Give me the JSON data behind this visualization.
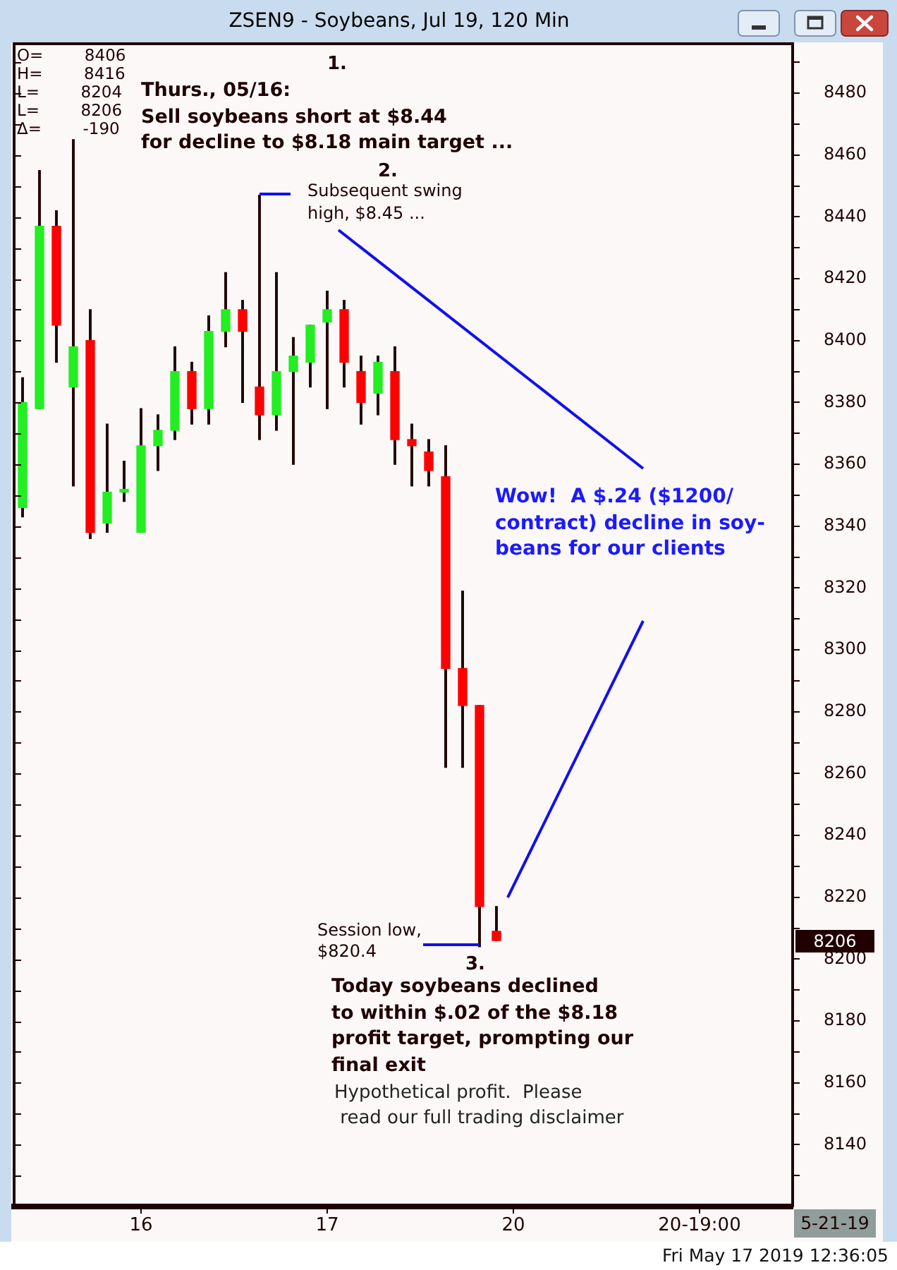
{
  "chart_data": {
    "type": "candlestick",
    "title": "ZSEN9 - Soybeans, Jul 19, 120 Min",
    "categories": [
      null,
      null,
      null,
      null,
      null,
      null,
      null,
      "16",
      null,
      null,
      null,
      null,
      null,
      null,
      null,
      null,
      null,
      null,
      "17",
      null,
      null,
      null,
      null,
      null,
      null,
      null,
      null,
      null,
      null,
      "20",
      null,
      null,
      null,
      null,
      null,
      null,
      null,
      null,
      null,
      null,
      "20-19:00",
      null,
      null,
      null,
      null,
      null
    ],
    "ohlc": [
      [
        8346,
        8388,
        8343,
        8380
      ],
      [
        8378,
        8455,
        8378,
        8437
      ],
      [
        8437,
        8442,
        8393,
        8405
      ],
      [
        8385,
        8465,
        8353,
        8398
      ],
      [
        8400,
        8410,
        8336,
        8338
      ],
      [
        8341,
        8373,
        8338,
        8351
      ],
      [
        8351,
        8361,
        8348,
        8351
      ],
      [
        8338,
        8378,
        8338,
        8366
      ],
      [
        8366,
        8376,
        8358,
        8371
      ],
      [
        8371,
        8398,
        8368,
        8390
      ],
      [
        8390,
        8393,
        8373,
        8378
      ],
      [
        8378,
        8408,
        8373,
        8403
      ],
      [
        8403,
        8422,
        8398,
        8410
      ],
      [
        8410,
        8413,
        8380,
        8403
      ],
      [
        8385,
        8447,
        8368,
        8376
      ],
      [
        8376,
        8422,
        8371,
        8390
      ],
      [
        8390,
        8401,
        8360,
        8395
      ],
      [
        8393,
        8405,
        8385,
        8405
      ],
      [
        8406,
        8416,
        8378,
        8410
      ],
      [
        8410,
        8413,
        8385,
        8393
      ],
      [
        8390,
        8395,
        8373,
        8380
      ],
      [
        8383,
        8395,
        8376,
        8393
      ],
      [
        8390,
        8398,
        8360,
        8368
      ],
      [
        8368,
        8373,
        8353,
        8366
      ],
      [
        8364,
        8368,
        8353,
        8358
      ],
      [
        8356,
        8366,
        8262,
        8294
      ],
      [
        8294,
        8319,
        8262,
        8282
      ],
      [
        8282,
        8282,
        8204,
        8217
      ],
      [
        8209,
        8217,
        8206,
        8206
      ],
      null,
      null,
      null,
      null,
      null,
      null,
      null,
      null,
      null,
      null,
      null,
      null,
      null,
      null,
      null,
      null,
      null
    ],
    "colors": [
      "#22ee22",
      "#22ee22",
      "#ff0000",
      "#22ee22",
      "#ff0000",
      "#22ee22",
      "#22ee22",
      "#22ee22",
      "#22ee22",
      "#22ee22",
      "#ff0000",
      "#22ee22",
      "#22ee22",
      "#ff0000",
      "#ff0000",
      "#22ee22",
      "#22ee22",
      "#22ee22",
      "#22ee22",
      "#ff0000",
      "#ff0000",
      "#22ee22",
      "#ff0000",
      "#ff0000",
      "#ff0000",
      "#ff0000",
      "#ff0000",
      "#ff0000",
      "#ff0000",
      null,
      null,
      null,
      null,
      null,
      null,
      null,
      null,
      null,
      null,
      null,
      null,
      null,
      null,
      null,
      null,
      null
    ],
    "ylim": [
      8120,
      8496
    ],
    "yticks": [
      {
        "value": 8130,
        "label": null
      },
      8140,
      {
        "value": 8150,
        "label": null
      },
      8160,
      {
        "value": 8170,
        "label": null
      },
      8180,
      {
        "value": 8190,
        "label": null
      },
      8200,
      {
        "value": 8210,
        "label": null
      },
      8220,
      {
        "value": 8230,
        "label": null
      },
      8240,
      {
        "value": 8250,
        "label": null
      },
      8260,
      {
        "value": 8270,
        "label": null
      },
      8280,
      {
        "value": 8290,
        "label": null
      },
      8300,
      {
        "value": 8310,
        "label": null
      },
      8320,
      {
        "value": 8330,
        "label": null
      },
      8340,
      {
        "value": 8350,
        "label": null
      },
      8360,
      {
        "value": 8370,
        "label": null
      },
      8380,
      {
        "value": 8390,
        "label": null
      },
      8400,
      {
        "value": 8410,
        "label": null
      },
      8420,
      {
        "value": 8430,
        "label": null
      },
      8440,
      {
        "value": 8450,
        "label": null
      },
      8460,
      {
        "value": 8470,
        "label": null
      },
      8480,
      {
        "value": 8490,
        "label": null
      }
    ],
    "legend": false,
    "annotations": [
      "O=        8406\nH=        8416\nL=        8204\nL=        8206\nΔ=        -190",
      "1.",
      "Thurs., 05/16:\nSell soybeans short at $8.44\nfor decline to $8.18 main target ...",
      "2.",
      "Subsequent swing\nhigh, $8.45 ...",
      "Wow!  A $.24 ($1200/\ncontract) decline in soy-\nbeans for our clients",
      "Session low,\n$820.4",
      "3.",
      "Today soybeans declined\nto within $.02 of the $8.18\nprofit target, prompting our\nfinal exit",
      "Hypothetical profit.  Please\n read our full trading disclaimer",
      "5-21-19",
      "Fri May 17 2019 12:36:05",
      "8206"
    ]
  }
}
